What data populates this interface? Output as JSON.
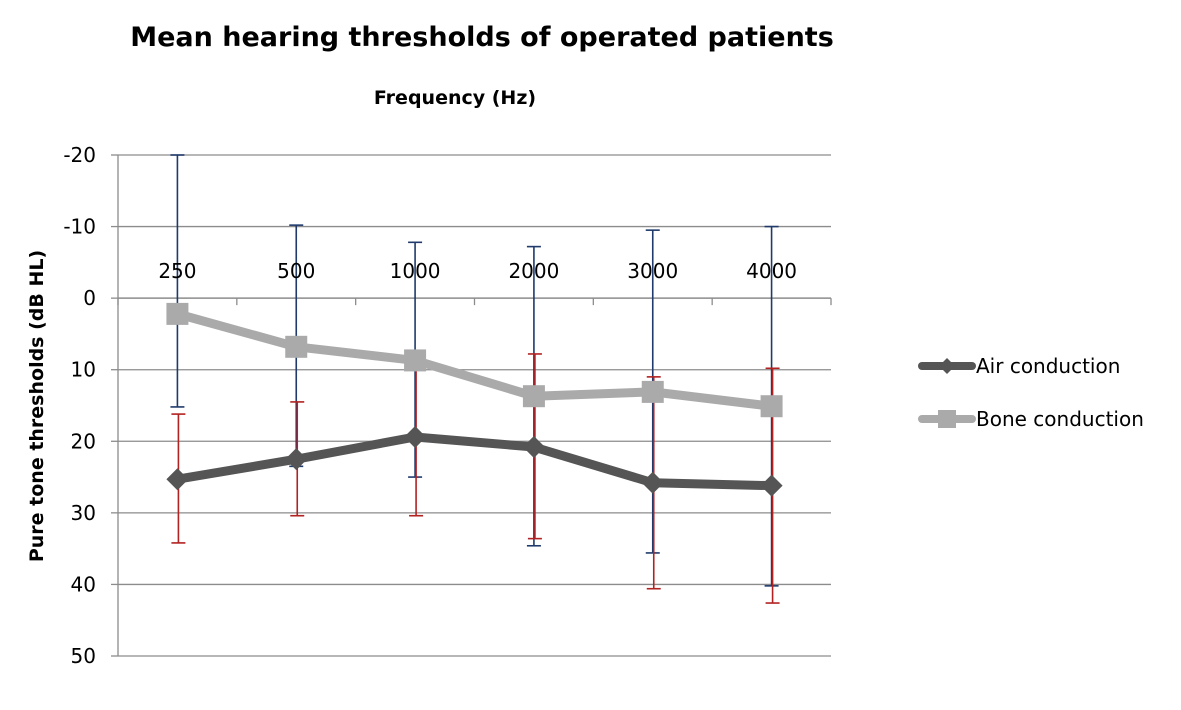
{
  "chart_data": {
    "type": "line",
    "title": "Mean hearing thresholds of operated patients",
    "xlabel": "Frequency (Hz)",
    "ylabel": "Pure tone thresholds (dB HL)",
    "categories": [
      "250",
      "500",
      "1000",
      "2000",
      "3000",
      "4000"
    ],
    "y_ticks": [
      "-20",
      "-10",
      "0",
      "10",
      "20",
      "30",
      "40",
      "50"
    ],
    "ylim": [
      -20,
      50
    ],
    "y_inverted": true,
    "x_axis_position": "top (at y = 0)",
    "grid": "horizontal",
    "legend_position": "right",
    "series": [
      {
        "name": "Air conduction",
        "marker": "diamond",
        "color": "#555555",
        "values": [
          25.3,
          22.5,
          19.4,
          20.8,
          25.8,
          26.2
        ],
        "error_bars": [
          {
            "low": 16.2,
            "high": 34.2,
            "color": "#b22222"
          },
          {
            "low": 14.5,
            "high": 30.4,
            "color": "#b22222"
          },
          {
            "low": 8.5,
            "high": 30.4,
            "color": "#b22222"
          },
          {
            "low": 7.8,
            "high": 33.6,
            "color": "#b22222"
          },
          {
            "low": 11.0,
            "high": 40.6,
            "color": "#b22222"
          },
          {
            "low": 9.8,
            "high": 42.6,
            "color": "#b22222"
          }
        ]
      },
      {
        "name": "Bone conduction",
        "marker": "square",
        "color": "#aaaaaa",
        "values": [
          2.2,
          6.8,
          8.7,
          13.7,
          13.1,
          15.1
        ],
        "error_bars": [
          {
            "low": -20.0,
            "high": 15.2,
            "color": "#1f3a6b"
          },
          {
            "low": -10.2,
            "high": 23.5,
            "color": "#1f3a6b"
          },
          {
            "low": -7.8,
            "high": 25.0,
            "color": "#1f3a6b"
          },
          {
            "low": -7.2,
            "high": 34.6,
            "color": "#1f3a6b"
          },
          {
            "low": -9.5,
            "high": 35.6,
            "color": "#1f3a6b"
          },
          {
            "low": -10.0,
            "high": 40.2,
            "color": "#1f3a6b"
          }
        ]
      }
    ]
  }
}
